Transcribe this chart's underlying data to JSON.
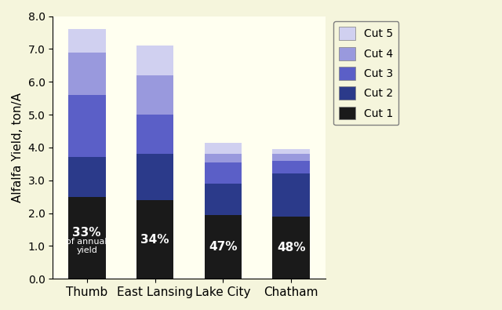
{
  "categories": [
    "Thumb",
    "East Lansing",
    "Lake City",
    "Chatham"
  ],
  "cuts": {
    "Cut 1": [
      2.5,
      2.4,
      1.95,
      1.9
    ],
    "Cut 2": [
      1.2,
      1.4,
      0.95,
      1.3
    ],
    "Cut 3": [
      1.9,
      1.2,
      0.65,
      0.4
    ],
    "Cut 4": [
      1.3,
      1.2,
      0.25,
      0.2
    ],
    "Cut 5": [
      0.7,
      0.9,
      0.35,
      0.15
    ]
  },
  "cut_colors": [
    "#1a1a1a",
    "#2b3a8a",
    "#5b5fc7",
    "#9999dd",
    "#d0d0f0"
  ],
  "cut_labels": [
    "Cut 1",
    "Cut 2",
    "Cut 3",
    "Cut 4",
    "Cut 5"
  ],
  "annotations": [
    {
      "x": 0,
      "text1": "33%",
      "text2": "of annual\nyield"
    },
    {
      "x": 1,
      "text1": "34%",
      "text2": null
    },
    {
      "x": 2,
      "text1": "47%",
      "text2": null
    },
    {
      "x": 3,
      "text1": "48%",
      "text2": null
    }
  ],
  "ylabel": "Alfalfa Yield, ton/A",
  "ylim": [
    0,
    8.0
  ],
  "yticks": [
    0.0,
    1.0,
    2.0,
    3.0,
    4.0,
    5.0,
    6.0,
    7.0,
    8.0
  ],
  "background_color": "#f5f5dc",
  "plot_bg_color": "#fffff0",
  "bar_width": 0.55
}
